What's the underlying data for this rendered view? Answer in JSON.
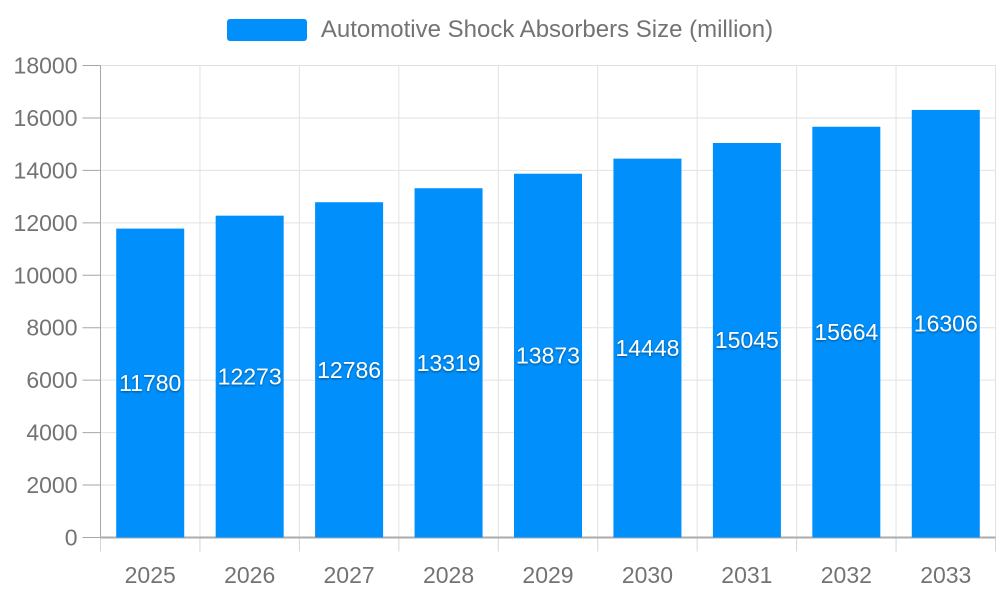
{
  "chart_data": {
    "type": "bar",
    "title": "Automotive Shock Absorbers Size (million)",
    "categories": [
      "2025",
      "2026",
      "2027",
      "2028",
      "2029",
      "2030",
      "2031",
      "2032",
      "2033"
    ],
    "series": [
      {
        "name": "Automotive Shock Absorbers Size (million)",
        "values": [
          11780,
          12273,
          12786,
          13319,
          13873,
          14448,
          15045,
          15664,
          16306
        ]
      }
    ],
    "xlabel": "",
    "ylabel": "",
    "ylim": [
      0,
      18000
    ],
    "ytick_step": 2000,
    "grid": "on",
    "legend_position": "top-center",
    "colors": {
      "bar": "#008FFB",
      "grid_line": "#e2e2e2",
      "axis_line": "#a6a6a6",
      "x_axis_border": "#ababab",
      "x_tick": "#d6d6d6",
      "label_text": "#737373",
      "data_label_text": "#ffffff"
    }
  }
}
